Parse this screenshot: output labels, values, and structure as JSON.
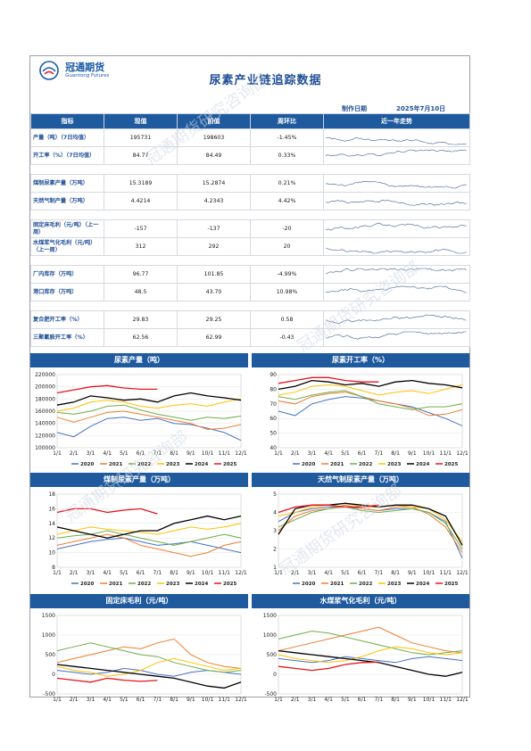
{
  "brand": {
    "name_cn": "冠通期货",
    "name_en": "Guantong Futures"
  },
  "title": "尿素产业链追踪数据",
  "date_label": "制作日期",
  "date_value": "2025年7月10日",
  "table": {
    "headers": [
      "指标",
      "现值",
      "前值",
      "周环比",
      "近一年走势"
    ],
    "groups": [
      [
        {
          "name": "产量（吨）（7日均值）",
          "current": "195731",
          "previous": "198603",
          "wow": "-1.45%"
        },
        {
          "name": "开工率（%）（7日均值）",
          "current": "84.77",
          "previous": "84.49",
          "wow": "0.33%"
        }
      ],
      [
        {
          "name": "煤制尿素产量（万吨）",
          "current": "15.3189",
          "previous": "15.2874",
          "wow": "0.21%"
        },
        {
          "name": "天然气制产量（万吨）",
          "current": "4.4214",
          "previous": "4.2343",
          "wow": "4.42%"
        }
      ],
      [
        {
          "name": "固定床毛利（元/吨）（上一周）",
          "current": "-157",
          "previous": "-137",
          "wow": "-20"
        },
        {
          "name": "水煤浆气化毛利（元/吨）（上一周）",
          "current": "312",
          "previous": "292",
          "wow": "20"
        }
      ],
      [
        {
          "name": "厂内库存（万吨）",
          "current": "96.77",
          "previous": "101.85",
          "wow": "-4.99%"
        },
        {
          "name": "港口库存（万吨）",
          "current": "48.5",
          "previous": "43.70",
          "wow": "10.98%"
        }
      ],
      [
        {
          "name": "复合肥开工率（%）",
          "current": "29.83",
          "previous": "29.25",
          "wow": "0.58"
        },
        {
          "name": "三聚氰胺开工率（%）",
          "current": "62.56",
          "previous": "62.99",
          "wow": "-0.43"
        }
      ]
    ]
  },
  "colors": {
    "header_bg": "#1f5a9e",
    "series": {
      "2020": "#4472c4",
      "2021": "#ed7d31",
      "2022": "#70ad47",
      "2023": "#ffc000",
      "2024": "#000000",
      "2025": "#e8141c"
    }
  },
  "watermark": "冠通期货研究咨询部",
  "chart_data": [
    {
      "type": "line",
      "title": "尿素产量（吨）",
      "xticks": [
        "1/1",
        "2/1",
        "3/1",
        "4/1",
        "5/1",
        "6/1",
        "7/1",
        "8/1",
        "9/1",
        "10/1",
        "11/1",
        "12/1"
      ],
      "ylim": [
        100000,
        220000
      ],
      "yticks": [
        100000,
        120000,
        140000,
        160000,
        180000,
        200000,
        220000
      ],
      "legend": [
        "2020",
        "2021",
        "2022",
        "2023",
        "2024",
        "2025"
      ],
      "series": [
        {
          "name": "2020",
          "values": [
            125000,
            118000,
            135000,
            148000,
            150000,
            145000,
            148000,
            140000,
            138000,
            132000,
            125000,
            112000
          ]
        },
        {
          "name": "2021",
          "values": [
            150000,
            142000,
            150000,
            158000,
            160000,
            155000,
            150000,
            145000,
            140000,
            130000,
            132000,
            138000
          ]
        },
        {
          "name": "2022",
          "values": [
            158000,
            155000,
            160000,
            168000,
            170000,
            162000,
            155000,
            150000,
            145000,
            150000,
            148000,
            152000
          ]
        },
        {
          "name": "2023",
          "values": [
            160000,
            165000,
            175000,
            178000,
            175000,
            168000,
            165000,
            170000,
            172000,
            168000,
            175000,
            180000
          ]
        },
        {
          "name": "2024",
          "values": [
            170000,
            175000,
            185000,
            182000,
            178000,
            180000,
            175000,
            185000,
            190000,
            185000,
            182000,
            178000
          ]
        },
        {
          "name": "2025",
          "values": [
            190000,
            195000,
            200000,
            202000,
            198000,
            196000,
            196000
          ]
        }
      ]
    },
    {
      "type": "line",
      "title": "尿素开工率（%）",
      "xticks": [
        "1/1",
        "2/1",
        "3/1",
        "4/1",
        "5/1",
        "6/1",
        "7/1",
        "8/1",
        "9/1",
        "10/1",
        "11/1",
        "12/1"
      ],
      "ylim": [
        40,
        90
      ],
      "yticks": [
        40,
        50,
        60,
        70,
        80,
        90
      ],
      "legend": [
        "2020",
        "2021",
        "2022",
        "2023",
        "2024",
        "2025"
      ],
      "series": [
        {
          "name": "2020",
          "values": [
            65,
            62,
            70,
            73,
            75,
            74,
            72,
            70,
            68,
            64,
            60,
            55
          ]
        },
        {
          "name": "2021",
          "values": [
            72,
            70,
            75,
            77,
            78,
            75,
            72,
            70,
            67,
            62,
            63,
            66
          ]
        },
        {
          "name": "2022",
          "values": [
            75,
            73,
            76,
            78,
            79,
            75,
            70,
            68,
            66,
            68,
            68,
            70
          ]
        },
        {
          "name": "2023",
          "values": [
            76,
            78,
            82,
            83,
            82,
            79,
            76,
            78,
            79,
            77,
            80,
            83
          ]
        },
        {
          "name": "2024",
          "values": [
            80,
            82,
            86,
            85,
            83,
            84,
            82,
            85,
            86,
            84,
            83,
            81
          ]
        },
        {
          "name": "2025",
          "values": [
            84,
            86,
            88,
            88,
            86,
            85,
            85
          ]
        }
      ]
    },
    {
      "type": "line",
      "title": "煤制尿素产量（万吨）",
      "xticks": [
        "1/1",
        "2/1",
        "3/1",
        "4/1",
        "5/1",
        "6/1",
        "7/1",
        "8/1",
        "9/1",
        "10/1",
        "11/1",
        "12/1"
      ],
      "ylim": [
        8,
        18
      ],
      "yticks": [
        8,
        10,
        12,
        14,
        16,
        18
      ],
      "legend": [
        "2020",
        "2021",
        "2022",
        "2023",
        "2024",
        "2025"
      ],
      "series": [
        {
          "name": "2020",
          "values": [
            10.5,
            11,
            11.5,
            11.8,
            12,
            11.5,
            11,
            11.2,
            11.5,
            11,
            10.5,
            10
          ]
        },
        {
          "name": "2021",
          "values": [
            11,
            11.5,
            12,
            12.5,
            12,
            11,
            10.5,
            10,
            9.5,
            10,
            11,
            11.5
          ]
        },
        {
          "name": "2022",
          "values": [
            12,
            12.3,
            12.5,
            13,
            12.5,
            12,
            11.5,
            11,
            11.5,
            12,
            12.5,
            12
          ]
        },
        {
          "name": "2023",
          "values": [
            12.5,
            13,
            13.5,
            13.2,
            13,
            12.8,
            12.5,
            13,
            13.5,
            13.2,
            13.5,
            14
          ]
        },
        {
          "name": "2024",
          "values": [
            13.5,
            13,
            12.5,
            12,
            12.5,
            13,
            13,
            14,
            14.5,
            15,
            14.5,
            15
          ]
        },
        {
          "name": "2025",
          "values": [
            15.5,
            16,
            16,
            15.5,
            15.8,
            16,
            15.3
          ]
        }
      ]
    },
    {
      "type": "line",
      "title": "天然气制尿素产量（万吨）",
      "xticks": [
        "1/1",
        "2/1",
        "3/1",
        "4/1",
        "5/1",
        "6/1",
        "7/1",
        "8/1",
        "9/1",
        "10/1",
        "11/1",
        "12/1"
      ],
      "ylim": [
        1,
        5
      ],
      "yticks": [
        1,
        2,
        3,
        4,
        5
      ],
      "legend": [
        "2020",
        "2021",
        "2022",
        "2023",
        "2024",
        "2025"
      ],
      "series": [
        {
          "name": "2020",
          "values": [
            3.5,
            4,
            4.2,
            4.3,
            4.3,
            4.2,
            4.1,
            4.2,
            4.2,
            4,
            3.5,
            1.5
          ]
        },
        {
          "name": "2021",
          "values": [
            3,
            3.8,
            4.1,
            4.2,
            4.4,
            4.2,
            4.1,
            4.3,
            4.3,
            3.9,
            3.2,
            1.8
          ]
        },
        {
          "name": "2022",
          "values": [
            3.2,
            3.6,
            4,
            4.2,
            4.3,
            4.1,
            4,
            4.1,
            4.2,
            4,
            3.4,
            2
          ]
        },
        {
          "name": "2023",
          "values": [
            3.8,
            4,
            4.3,
            4.4,
            4.5,
            4.3,
            4.3,
            4.4,
            4.3,
            4.2,
            3.6,
            2.4
          ]
        },
        {
          "name": "2024",
          "values": [
            2.8,
            4.2,
            4.4,
            4.4,
            4.5,
            4.4,
            4.3,
            4.4,
            4.4,
            4.2,
            3.8,
            2.2
          ]
        },
        {
          "name": "2025",
          "values": [
            4,
            4.3,
            4.4,
            4.4,
            4.3,
            4.3,
            4.4
          ]
        }
      ]
    },
    {
      "type": "line",
      "title": "固定床毛利（元/吨）",
      "xticks": [
        "1/1",
        "2/1",
        "3/1",
        "4/1",
        "5/1",
        "6/1",
        "7/1",
        "8/1",
        "9/1",
        "10/1",
        "11/1",
        "12/1"
      ],
      "ylim": [
        -500,
        1500
      ],
      "yticks": [
        -500,
        0,
        500,
        1000,
        1500
      ],
      "series": [
        {
          "name": "2020",
          "values": [
            100,
            50,
            0,
            50,
            150,
            100,
            0,
            -50,
            50,
            100,
            50,
            0
          ]
        },
        {
          "name": "2021",
          "values": [
            300,
            400,
            500,
            600,
            700,
            650,
            800,
            900,
            500,
            300,
            200,
            150
          ]
        },
        {
          "name": "2022",
          "values": [
            600,
            700,
            800,
            700,
            600,
            500,
            450,
            300,
            200,
            100,
            50,
            100
          ]
        },
        {
          "name": "2023",
          "values": [
            200,
            100,
            50,
            -50,
            0,
            100,
            300,
            400,
            300,
            200,
            100,
            150
          ]
        },
        {
          "name": "2024",
          "values": [
            250,
            200,
            150,
            100,
            50,
            0,
            -50,
            -100,
            -200,
            -300,
            -350,
            -200
          ]
        },
        {
          "name": "2025",
          "values": [
            -100,
            -150,
            -200,
            -100,
            -150,
            -180,
            -157
          ]
        }
      ]
    },
    {
      "type": "line",
      "title": "水煤浆气化毛利（元/吨）",
      "xticks": [
        "1/1",
        "2/1",
        "3/1",
        "4/1",
        "5/1",
        "6/1",
        "7/1",
        "8/1",
        "9/1",
        "10/1",
        "11/1",
        "12/1"
      ],
      "ylim": [
        -500,
        1500
      ],
      "yticks": [
        -500,
        0,
        500,
        1000,
        1500
      ],
      "series": [
        {
          "name": "2020",
          "values": [
            400,
            350,
            300,
            350,
            450,
            400,
            350,
            300,
            400,
            450,
            400,
            350
          ]
        },
        {
          "name": "2021",
          "values": [
            600,
            700,
            800,
            900,
            1000,
            1100,
            1200,
            1000,
            800,
            700,
            600,
            550
          ]
        },
        {
          "name": "2022",
          "values": [
            900,
            1000,
            1100,
            1050,
            950,
            850,
            750,
            650,
            550,
            500,
            550,
            600
          ]
        },
        {
          "name": "2023",
          "values": [
            500,
            400,
            350,
            300,
            350,
            450,
            600,
            700,
            650,
            550,
            500,
            550
          ]
        },
        {
          "name": "2024",
          "values": [
            600,
            550,
            500,
            450,
            400,
            350,
            300,
            200,
            100,
            0,
            -50,
            50
          ]
        },
        {
          "name": "2025",
          "values": [
            200,
            150,
            100,
            150,
            250,
            300,
            312
          ]
        }
      ]
    }
  ]
}
